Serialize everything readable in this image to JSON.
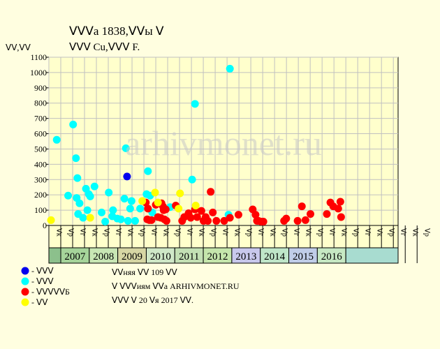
{
  "header": {
    "title": "ⴸⴸⴸа 1838,ⴸⴸы ⴸ",
    "subtitle": "ⴸⴸⴸ Cu,ⴸⴸⴸ F."
  },
  "watermark": "arhivmonet.ru",
  "footer": {
    "line1": "ⴸⴸняя ⴸⴸ 109 ⴸⴸ",
    "line2": "ⴸ ⴸⴸⴸиям ⴸⴸа ARHIVMONET.RU",
    "line3": "ⴸⴸⴸ ⴸ 20 ⴸя 2017 ⴸⴸ."
  },
  "colors": {
    "background": "#fffee0",
    "plot_bg": "#ffffcc",
    "grid": "#c0c0c0",
    "year_cells": [
      "#a6d49a",
      "#c8e6b4",
      "#d6d6a4",
      "#cfe8c7",
      "#c3e0b4",
      "#c5e6ac",
      "#c8c8ec",
      "#bfe6c9",
      "#c0cde8",
      "#c6e8c3"
    ],
    "first_cell": "#8cc08c",
    "last_cell": "#a8dcd0"
  },
  "chart_data": {
    "type": "scatter",
    "ylabel": "ⴸⴸ,ⴸⴸ",
    "ylim": [
      0,
      1100
    ],
    "yticks": [
      0,
      100,
      200,
      300,
      400,
      500,
      600,
      700,
      800,
      900,
      1000,
      1100
    ],
    "grid": true,
    "half_year_labels": [
      "ⴸк",
      "ⴸр",
      "ⴸг",
      "ⴸк",
      "ⴸр",
      "ⴸг",
      "ⴸк",
      "ⴸр",
      "ⴸг",
      "ⴸк",
      "ⴸр",
      "ⴸг",
      "ⴸк",
      "ⴸр",
      "ⴸг",
      "ⴸк",
      "ⴸр",
      "ⴸг",
      "ⴸк",
      "ⴸр",
      "ⴸг",
      "ⴸк",
      "ⴸр",
      "ⴸг",
      "ⴸк",
      "ⴸр",
      "ⴸг",
      "ⴸк",
      "ⴸр",
      "ⴸг",
      "ⴸк",
      "ⴸр"
    ],
    "years": [
      "2007",
      "2008",
      "2009",
      "2010",
      "2011",
      "2012",
      "2013",
      "2014",
      "2015",
      "2016"
    ],
    "x_range": [
      0,
      29.4
    ],
    "series": [
      {
        "name": "ⴸⴸⴸ",
        "color": "#0000ee",
        "points": [
          [
            6.58,
            320
          ]
        ]
      },
      {
        "name": "ⴸⴸⴸ",
        "color": "#00ffff",
        "points": [
          [
            0.66,
            560
          ],
          [
            1.62,
            195
          ],
          [
            2.04,
            660
          ],
          [
            2.28,
            440
          ],
          [
            2.34,
            180
          ],
          [
            2.4,
            310
          ],
          [
            2.46,
            75
          ],
          [
            2.58,
            145
          ],
          [
            2.88,
            50
          ],
          [
            3.12,
            240
          ],
          [
            3.24,
            100
          ],
          [
            3.36,
            205
          ],
          [
            3.48,
            190
          ],
          [
            3.84,
            255
          ],
          [
            4.44,
            85
          ],
          [
            4.74,
            25
          ],
          [
            5.04,
            215
          ],
          [
            5.34,
            60
          ],
          [
            5.4,
            100
          ],
          [
            5.76,
            45
          ],
          [
            6.06,
            40
          ],
          [
            6.36,
            175
          ],
          [
            6.48,
            505
          ],
          [
            6.66,
            30
          ],
          [
            6.84,
            110
          ],
          [
            6.96,
            160
          ],
          [
            7.26,
            30
          ],
          [
            7.68,
            110
          ],
          [
            8.22,
            205
          ],
          [
            8.34,
            355
          ],
          [
            8.52,
            195
          ],
          [
            8.7,
            85
          ],
          [
            10.2,
            120
          ],
          [
            12.06,
            300
          ],
          [
            12.3,
            795
          ],
          [
            15.12,
            70
          ],
          [
            15.24,
            1025
          ]
        ]
      },
      {
        "name": "ⴸⴸⴸⴸⴸБ",
        "color": "#ff0000",
        "points": [
          [
            8.16,
            150
          ],
          [
            8.28,
            40
          ],
          [
            8.34,
            110
          ],
          [
            8.46,
            35
          ],
          [
            8.64,
            35
          ],
          [
            9,
            135
          ],
          [
            9.18,
            55
          ],
          [
            9.42,
            50
          ],
          [
            9.48,
            145
          ],
          [
            9.6,
            125
          ],
          [
            9.66,
            100
          ],
          [
            9.72,
            40
          ],
          [
            9.84,
            105
          ],
          [
            9.9,
            30
          ],
          [
            10.68,
            130
          ],
          [
            11.22,
            30
          ],
          [
            11.4,
            55
          ],
          [
            11.76,
            80
          ],
          [
            11.94,
            50
          ],
          [
            12.3,
            105
          ],
          [
            12.48,
            55
          ],
          [
            12.84,
            95
          ],
          [
            13.02,
            30
          ],
          [
            13.2,
            55
          ],
          [
            13.38,
            30
          ],
          [
            13.62,
            220
          ],
          [
            13.8,
            85
          ],
          [
            14.1,
            30
          ],
          [
            14.76,
            30
          ],
          [
            15.24,
            50
          ],
          [
            15.96,
            70
          ],
          [
            17.16,
            105
          ],
          [
            17.4,
            70
          ],
          [
            17.52,
            30
          ],
          [
            17.64,
            30
          ],
          [
            17.88,
            25
          ],
          [
            18.06,
            25
          ],
          [
            19.8,
            30
          ],
          [
            19.98,
            45
          ],
          [
            20.94,
            30
          ],
          [
            21.3,
            125
          ],
          [
            21.6,
            35
          ],
          [
            22.02,
            75
          ],
          [
            23.4,
            75
          ],
          [
            23.7,
            150
          ],
          [
            23.94,
            125
          ],
          [
            24.36,
            110
          ],
          [
            24.54,
            155
          ],
          [
            24.6,
            55
          ]
        ]
      },
      {
        "name": "ⴸⴸ",
        "color": "#ffff00",
        "points": [
          [
            0.18,
            35
          ],
          [
            3.48,
            50
          ],
          [
            7.86,
            160
          ],
          [
            8.94,
            215
          ],
          [
            9.18,
            150
          ],
          [
            10.92,
            110
          ],
          [
            11.04,
            210
          ],
          [
            12.36,
            130
          ]
        ]
      }
    ]
  }
}
